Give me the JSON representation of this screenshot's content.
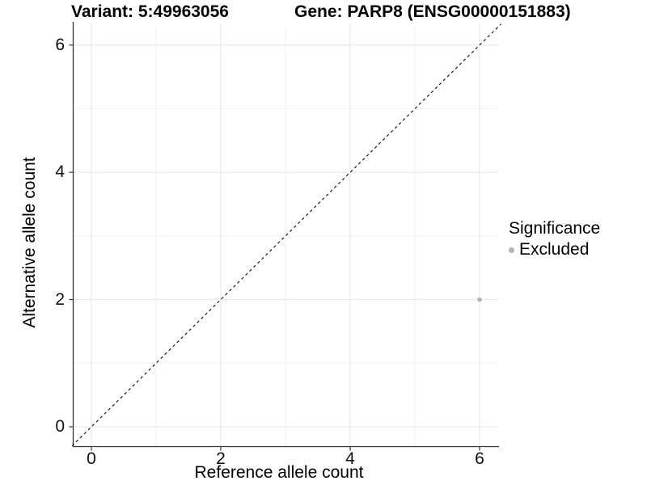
{
  "header": {
    "title_left": "Variant: 5:49963056",
    "title_right": "Gene: PARP8 (ENSG00000151883)"
  },
  "chart_data": {
    "type": "scatter",
    "title_left": "Variant: 5:49963056",
    "title_right": "Gene: PARP8 (ENSG00000151883)",
    "xlabel": "Reference allele count",
    "ylabel": "Alternative allele count",
    "xlim": [
      -0.3,
      6.33
    ],
    "ylim": [
      -0.3,
      6.38
    ],
    "xticks": [
      0,
      2,
      4,
      6
    ],
    "yticks": [
      0,
      2,
      4,
      6
    ],
    "minor_xticks": [
      1,
      3,
      5
    ],
    "minor_yticks": [
      1,
      3,
      5
    ],
    "grid": true,
    "series": [
      {
        "name": "Excluded",
        "color": "#b5b5b5",
        "points": [
          {
            "x": 6,
            "y": 2
          }
        ]
      }
    ],
    "reference_line": {
      "style": "dashed",
      "slope": 1,
      "intercept": 0,
      "color": "#1a1a1a"
    },
    "legend": {
      "title": "Significance",
      "position": "right",
      "items": [
        {
          "label": "Excluded",
          "color": "#b5b5b5"
        }
      ]
    }
  },
  "colors": {
    "grid_major": "#e6e6e6",
    "grid_minor": "#f2f2f2",
    "axis_line": "#333333",
    "point": "#b5b5b5"
  }
}
